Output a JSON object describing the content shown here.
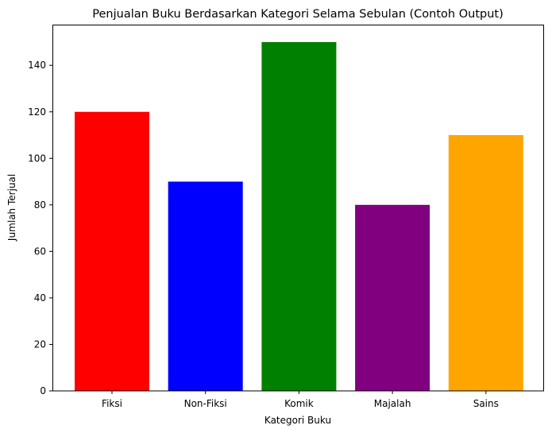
{
  "chart_data": {
    "type": "bar",
    "title": "Penjualan Buku Berdasarkan Kategori Selama Sebulan (Contoh Output)",
    "xlabel": "Kategori Buku",
    "ylabel": "Jumlah Terjual",
    "categories": [
      "Fiksi",
      "Non-Fiksi",
      "Komik",
      "Majalah",
      "Sains"
    ],
    "values": [
      120,
      90,
      150,
      80,
      110
    ],
    "colors": [
      "#ff0000",
      "#0000ff",
      "#008000",
      "#800080",
      "#ffa500"
    ],
    "ylim": [
      0,
      157.5
    ],
    "yticks": [
      0,
      20,
      40,
      60,
      80,
      100,
      120,
      140
    ],
    "grid": false,
    "legend": "none"
  }
}
